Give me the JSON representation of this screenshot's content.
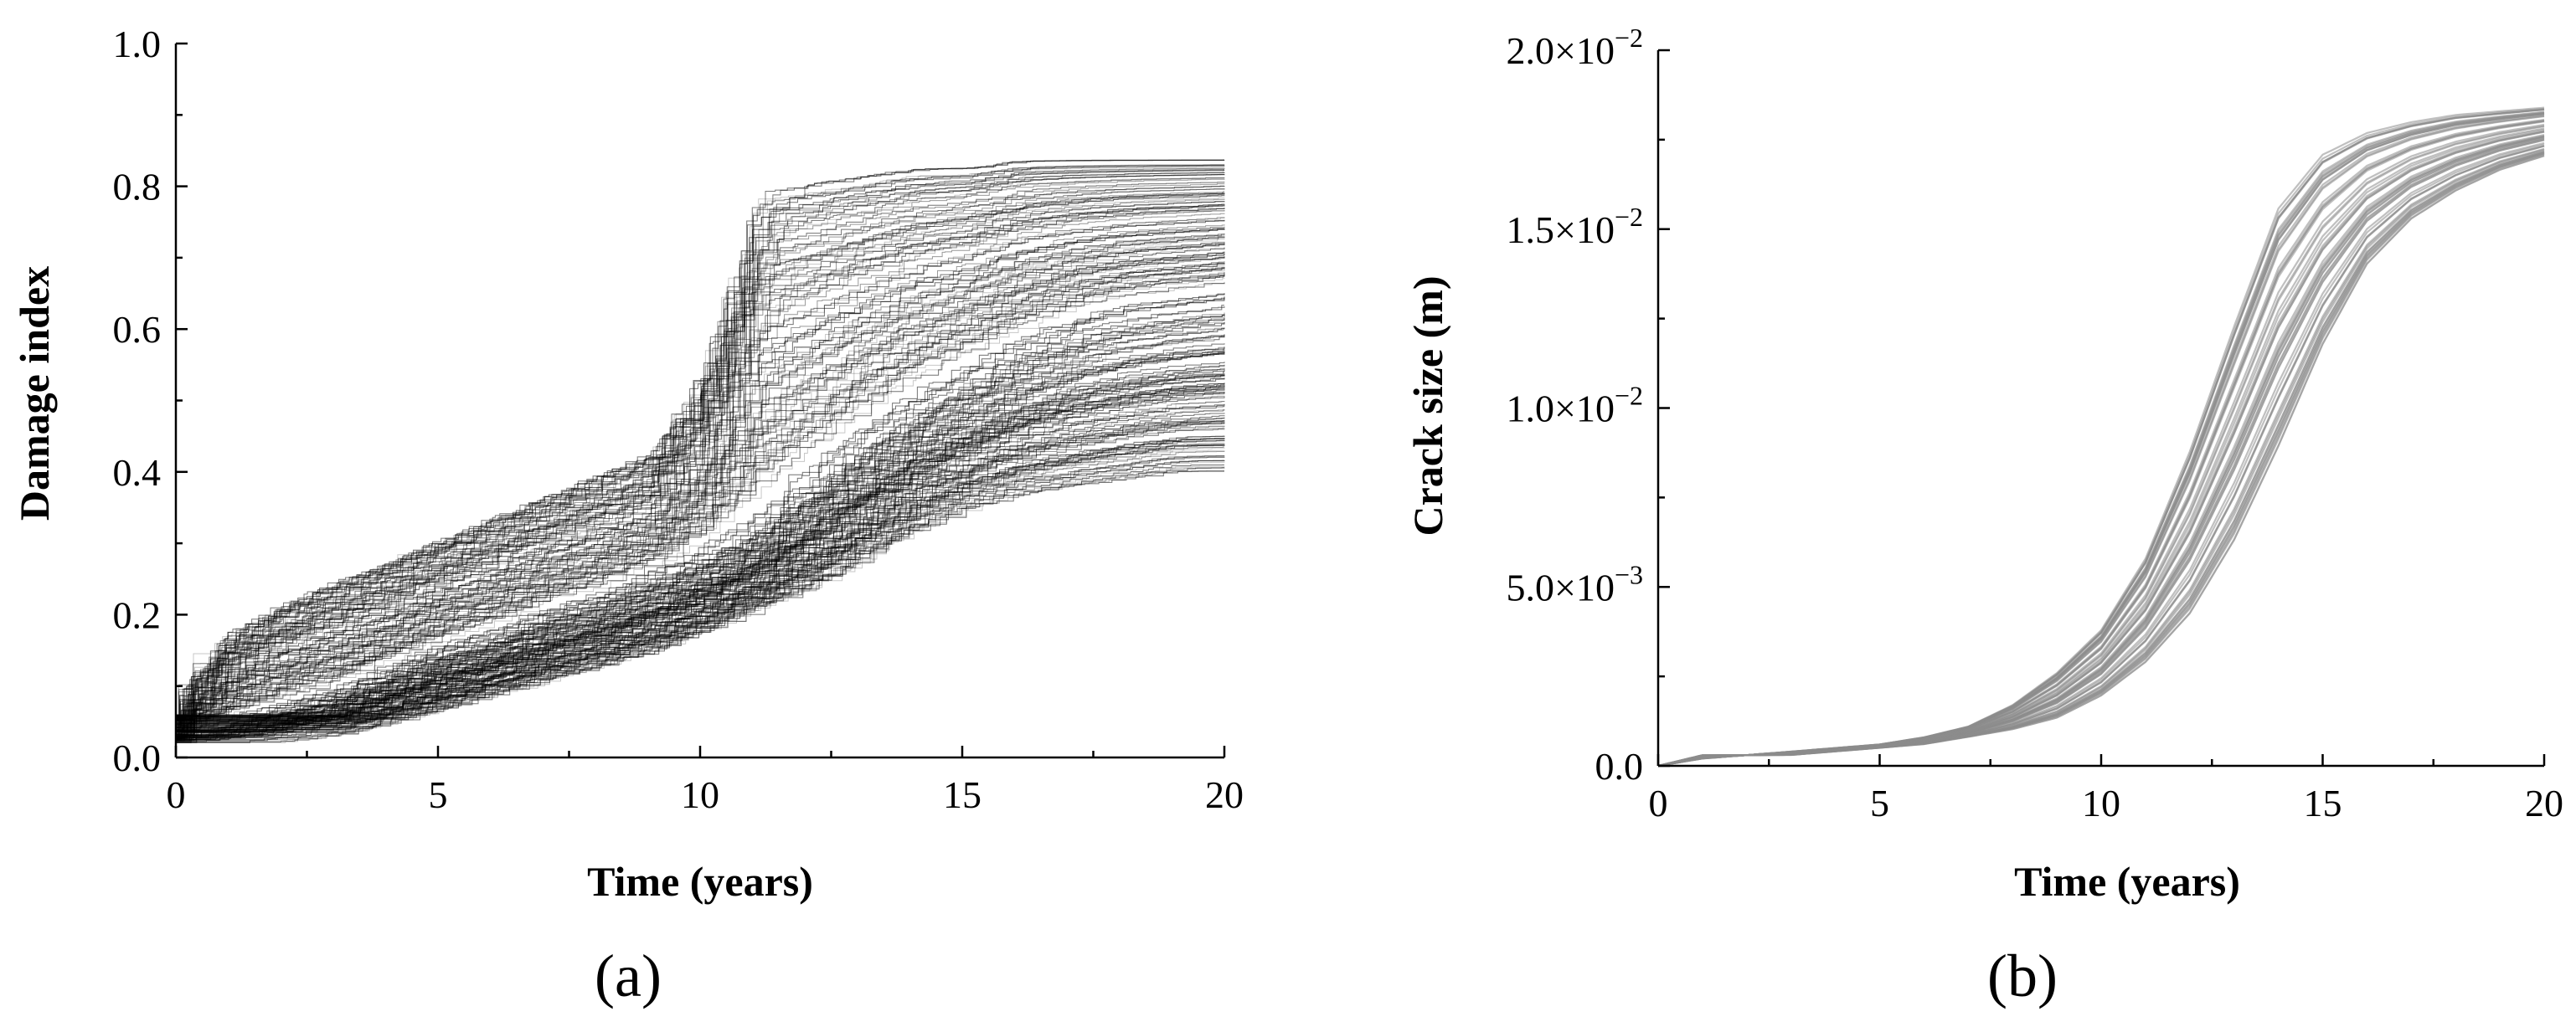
{
  "chart_data": [
    {
      "id": "a",
      "panel_label": "(a)",
      "type": "line",
      "style": "step",
      "xlabel": "Time (years)",
      "ylabel": "Damage index",
      "xlim": [
        0,
        20
      ],
      "ylim": [
        0,
        1.0
      ],
      "xticks": [
        0,
        5,
        10,
        15,
        20
      ],
      "yticks": [
        0.0,
        0.2,
        0.4,
        0.6,
        0.8,
        1.0
      ],
      "xtick_labels": [
        "0",
        "5",
        "10",
        "15",
        "20"
      ],
      "ytick_labels": [
        "0.0",
        "0.2",
        "0.4",
        "0.6",
        "0.8",
        "1.0"
      ],
      "line_color": "#000000",
      "n_series": 500,
      "envelope": {
        "x": [
          0,
          1,
          2,
          3,
          4,
          5,
          6,
          7,
          8,
          9,
          10,
          11,
          12,
          13,
          14,
          15,
          16,
          17,
          18,
          19,
          20
        ],
        "lower": [
          0.0,
          0.01,
          0.02,
          0.03,
          0.05,
          0.07,
          0.09,
          0.11,
          0.13,
          0.15,
          0.18,
          0.21,
          0.24,
          0.28,
          0.32,
          0.35,
          0.37,
          0.38,
          0.39,
          0.4,
          0.4
        ],
        "median": [
          0.03,
          0.05,
          0.07,
          0.09,
          0.12,
          0.15,
          0.17,
          0.2,
          0.22,
          0.25,
          0.28,
          0.32,
          0.38,
          0.44,
          0.49,
          0.53,
          0.57,
          0.6,
          0.62,
          0.63,
          0.64
        ],
        "upper": [
          0.1,
          0.18,
          0.22,
          0.25,
          0.28,
          0.31,
          0.34,
          0.37,
          0.4,
          0.43,
          0.55,
          0.8,
          0.81,
          0.82,
          0.83,
          0.83,
          0.84,
          0.84,
          0.84,
          0.84,
          0.84
        ]
      }
    },
    {
      "id": "b",
      "panel_label": "(b)",
      "type": "line",
      "xlabel": "Time (years)",
      "ylabel": "Crack size (m)",
      "xlim": [
        0,
        20
      ],
      "ylim": [
        0,
        0.02
      ],
      "xticks": [
        0,
        5,
        10,
        15,
        20
      ],
      "yticks": [
        0,
        0.005,
        0.01,
        0.015,
        0.02
      ],
      "xtick_labels": [
        "0",
        "5",
        "10",
        "15",
        "20"
      ],
      "ytick_labels": [
        {
          "mantissa": "0.0",
          "exp": ""
        },
        {
          "mantissa": "5.0×10",
          "exp": "−3"
        },
        {
          "mantissa": "1.0×10",
          "exp": "−2"
        },
        {
          "mantissa": "1.5×10",
          "exp": "−2"
        },
        {
          "mantissa": "2.0×10",
          "exp": "−2"
        }
      ],
      "line_color": "#8c8c8c",
      "n_series": 60,
      "envelope": {
        "x": [
          0,
          1,
          2,
          3,
          4,
          5,
          6,
          7,
          8,
          9,
          10,
          11,
          12,
          13,
          14,
          15,
          16,
          17,
          18,
          19,
          20
        ],
        "early": [
          0.0,
          0.0003,
          0.0003,
          0.0004,
          0.0005,
          0.0006,
          0.0008,
          0.0011,
          0.0017,
          0.0026,
          0.0038,
          0.0058,
          0.0088,
          0.0123,
          0.0156,
          0.0171,
          0.0177,
          0.018,
          0.0182,
          0.0183,
          0.0184
        ],
        "late": [
          0.0,
          0.0002,
          0.0003,
          0.0003,
          0.0004,
          0.0005,
          0.0006,
          0.0008,
          0.001,
          0.0013,
          0.0019,
          0.0028,
          0.0041,
          0.0061,
          0.0087,
          0.0116,
          0.0139,
          0.0152,
          0.016,
          0.0166,
          0.017
        ]
      }
    }
  ]
}
